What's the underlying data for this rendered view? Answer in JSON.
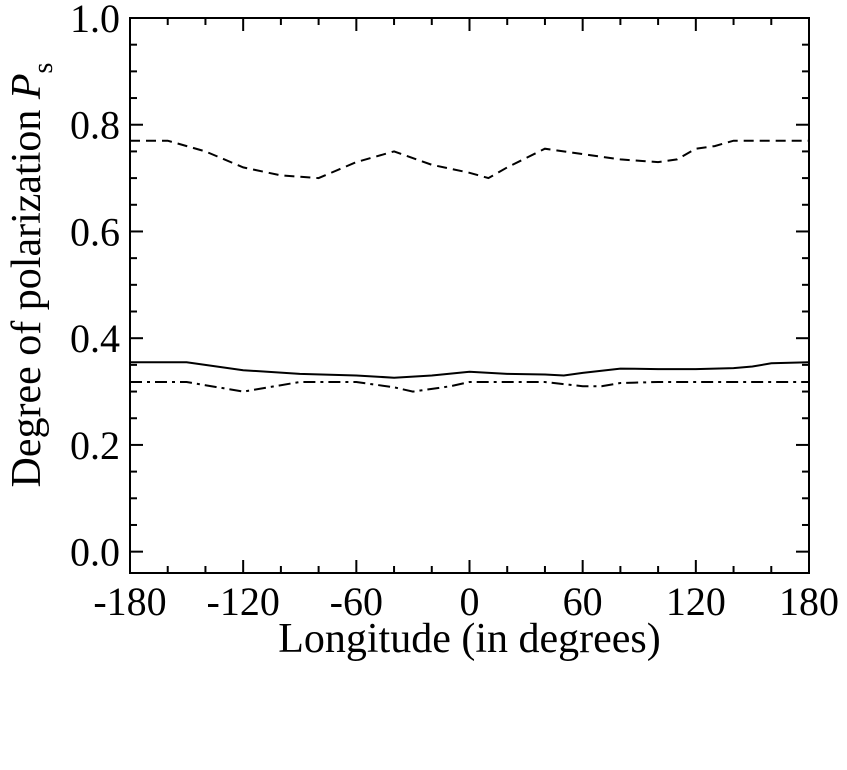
{
  "chart_data": {
    "type": "line",
    "title": "",
    "xlabel": "Longitude (in degrees)",
    "ylabel": {
      "text": "Degree of polarization ",
      "symbol": "P",
      "subscript": "s"
    },
    "xlim": [
      -180,
      180
    ],
    "ylim": [
      -0.04,
      1.0
    ],
    "xticks": [
      -180,
      -120,
      -60,
      0,
      60,
      120,
      180
    ],
    "xtick_labels": [
      "-180",
      "-120",
      "-60",
      "0",
      "60",
      "120",
      "180"
    ],
    "yticks": [
      0.0,
      0.2,
      0.4,
      0.6,
      0.8,
      1.0
    ],
    "ytick_labels": [
      "0.0",
      "0.2",
      "0.4",
      "0.6",
      "0.8",
      "1.0"
    ],
    "grid": false,
    "legend": "none",
    "series": [
      {
        "style": "dashed",
        "color": "#000000",
        "x": [
          -180,
          -160,
          -140,
          -120,
          -100,
          -80,
          -60,
          -40,
          -20,
          0,
          10,
          20,
          40,
          60,
          80,
          100,
          110,
          120,
          130,
          140,
          160,
          180
        ],
        "y": [
          0.77,
          0.77,
          0.75,
          0.72,
          0.705,
          0.7,
          0.73,
          0.75,
          0.725,
          0.71,
          0.7,
          0.72,
          0.755,
          0.745,
          0.735,
          0.73,
          0.735,
          0.755,
          0.76,
          0.77,
          0.77,
          0.77
        ]
      },
      {
        "style": "solid",
        "color": "#000000",
        "x": [
          -180,
          -150,
          -120,
          -90,
          -60,
          -40,
          -20,
          0,
          20,
          40,
          50,
          60,
          80,
          100,
          120,
          140,
          150,
          160,
          180
        ],
        "y": [
          0.355,
          0.355,
          0.34,
          0.333,
          0.33,
          0.326,
          0.33,
          0.337,
          0.333,
          0.332,
          0.33,
          0.335,
          0.343,
          0.342,
          0.342,
          0.344,
          0.347,
          0.353,
          0.355
        ]
      },
      {
        "style": "dashdot",
        "color": "#000000",
        "x": [
          -180,
          -150,
          -120,
          -90,
          -60,
          -40,
          -30,
          -10,
          0,
          20,
          40,
          60,
          70,
          80,
          100,
          120,
          140,
          160,
          180
        ],
        "y": [
          0.318,
          0.318,
          0.3,
          0.318,
          0.318,
          0.308,
          0.3,
          0.31,
          0.318,
          0.318,
          0.318,
          0.31,
          0.31,
          0.316,
          0.318,
          0.318,
          0.318,
          0.318,
          0.318
        ]
      }
    ]
  }
}
